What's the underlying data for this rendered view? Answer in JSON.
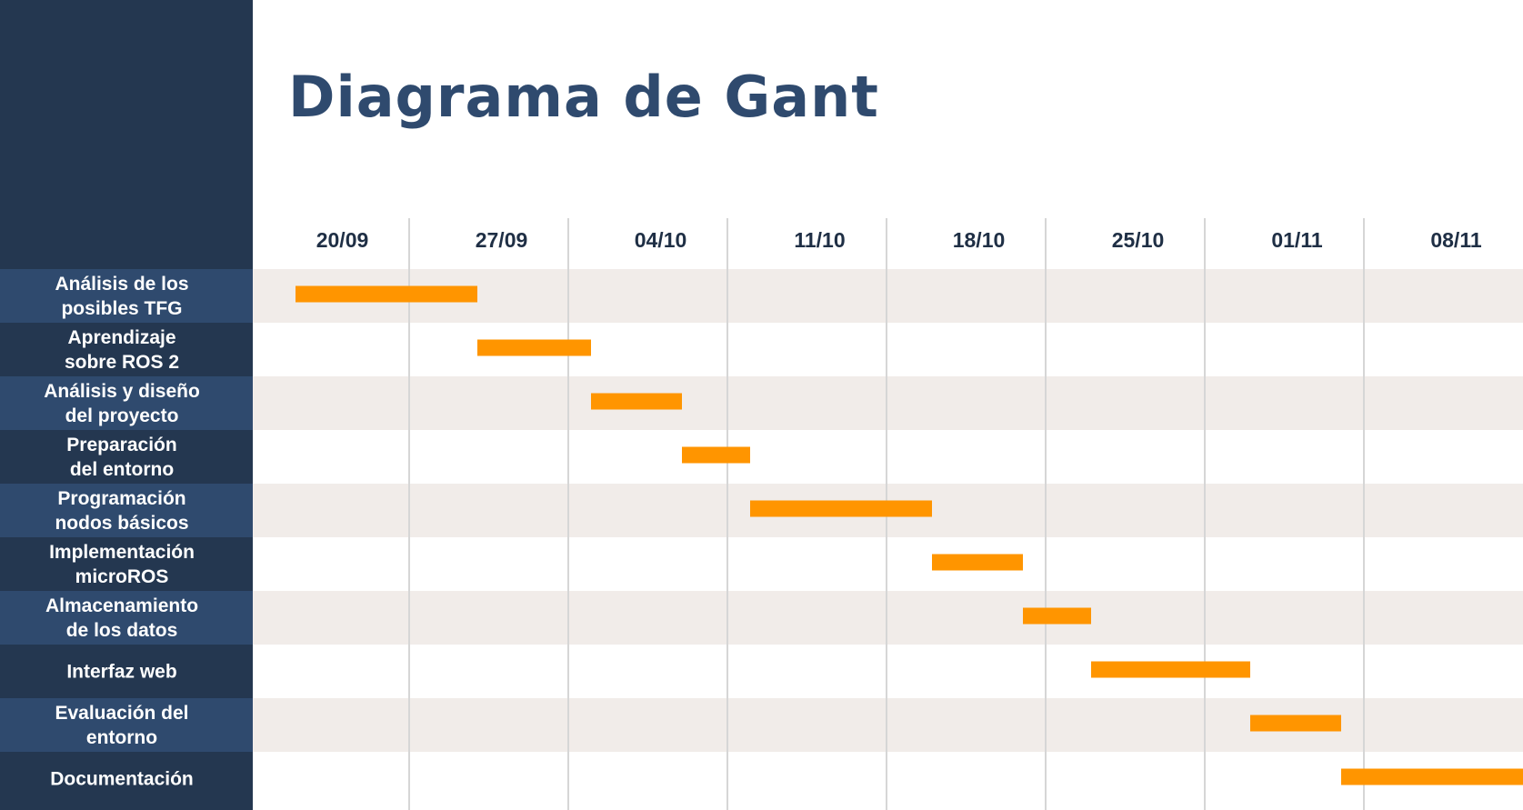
{
  "title": "Diagrama de Gant",
  "chart_data": {
    "type": "gantt",
    "title": "Diagrama de Gant",
    "x_ticks": [
      "20/09",
      "27/09",
      "04/10",
      "11/10",
      "18/10",
      "25/10",
      "01/11",
      "08/11"
    ],
    "tasks": [
      {
        "label": [
          "Análisis de los",
          "posibles TFG"
        ],
        "start": "2023-09-19",
        "end": "2023-09-27"
      },
      {
        "label": [
          "Aprendizaje",
          "sobre ROS 2"
        ],
        "start": "2023-09-27",
        "end": "2023-10-02"
      },
      {
        "label": [
          "Análisis y diseño",
          "del proyecto"
        ],
        "start": "2023-10-02",
        "end": "2023-10-06"
      },
      {
        "label": [
          "Preparación",
          "del entorno"
        ],
        "start": "2023-10-06",
        "end": "2023-10-09"
      },
      {
        "label": [
          "Programación",
          "nodos básicos"
        ],
        "start": "2023-10-09",
        "end": "2023-10-17"
      },
      {
        "label": [
          "Implementación",
          "microROS"
        ],
        "start": "2023-10-17",
        "end": "2023-10-21"
      },
      {
        "label": [
          "Almacenamiento",
          "de los datos"
        ],
        "start": "2023-10-21",
        "end": "2023-10-24"
      },
      {
        "label": [
          "Interfaz web"
        ],
        "start": "2023-10-24",
        "end": "2023-10-31"
      },
      {
        "label": [
          "Evaluación del",
          "entorno"
        ],
        "start": "2023-10-31",
        "end": "2023-11-04"
      },
      {
        "label": [
          "Documentación"
        ],
        "start": "2023-11-04",
        "end": "2023-11-14"
      }
    ],
    "colors": {
      "bar": "#ff9500",
      "sidebar": "#243750",
      "label_band": "#2f4a6e",
      "row_band": "#f1ece9",
      "gridline": "#d6d6d6",
      "title": "#2f4a6e",
      "tick_text": "#1f2f45"
    }
  }
}
